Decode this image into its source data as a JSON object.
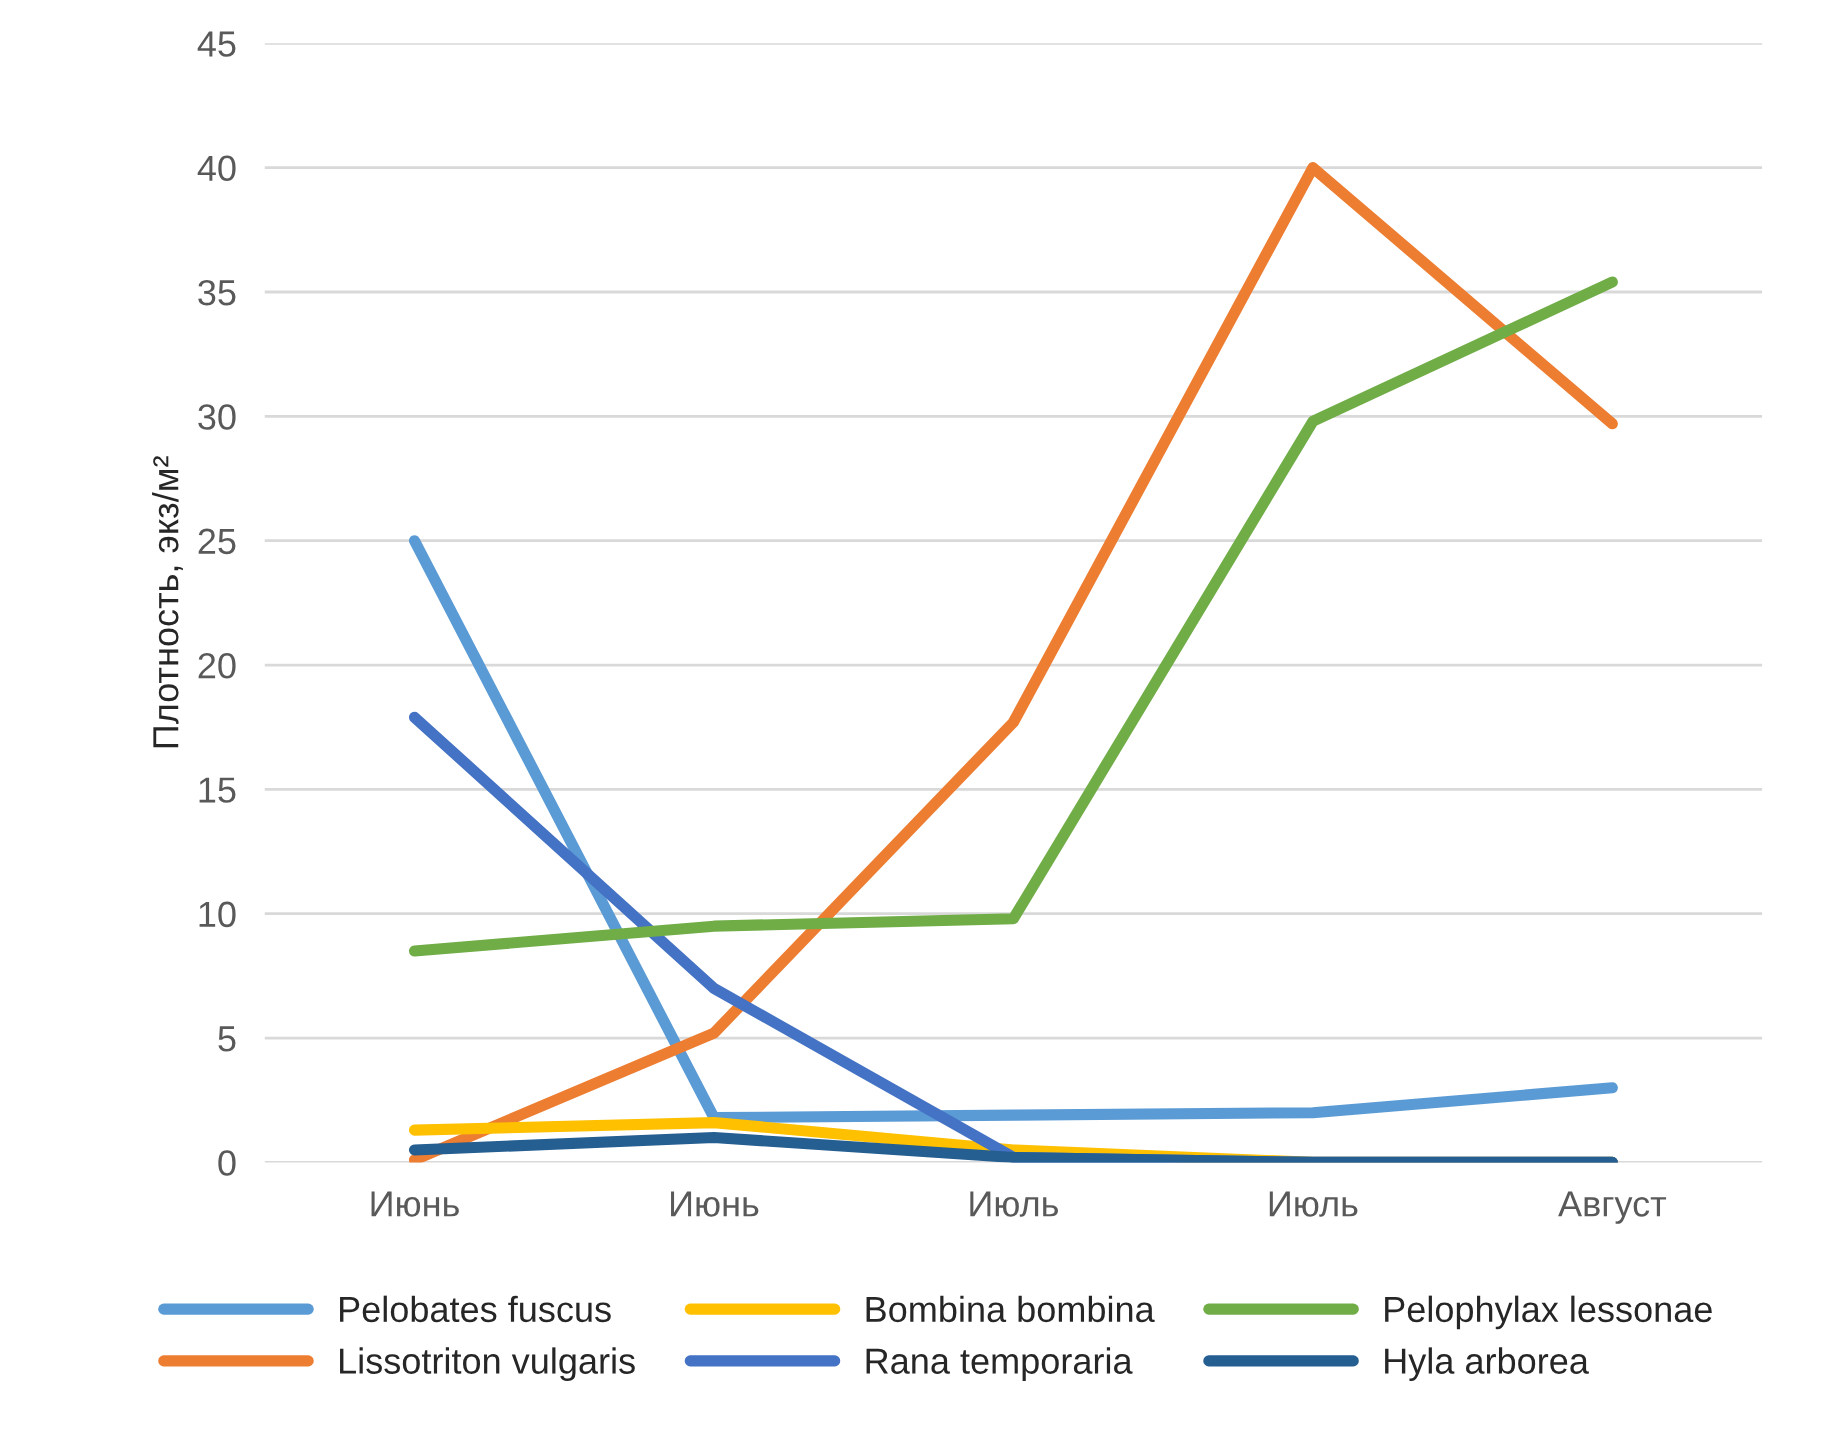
{
  "chart_data": {
    "type": "line",
    "ylabel": "Плотность, экз/м²",
    "categories": [
      "Июнь",
      "Июнь",
      "Июль",
      "Июль",
      "Август"
    ],
    "ylim": [
      0,
      45
    ],
    "yticks": [
      0,
      5,
      10,
      15,
      20,
      25,
      30,
      35,
      40,
      45
    ],
    "grid": "y",
    "legend": "bottom",
    "marker": "none",
    "line_style": "solid",
    "series": [
      {
        "name": "Pelobates fuscus",
        "color": "#5b9bd5",
        "values": [
          25,
          1.8,
          1.9,
          2.0,
          3.0
        ]
      },
      {
        "name": "Lissotriton vulgaris",
        "color": "#ed7d31",
        "values": [
          0.1,
          5.2,
          17.7,
          40,
          29.7
        ]
      },
      {
        "name": "Bombina bombina",
        "color": "#ffc000",
        "values": [
          1.3,
          1.6,
          0.5,
          0,
          0
        ]
      },
      {
        "name": "Rana temporaria",
        "color": "#4472c4",
        "values": [
          17.9,
          7.0,
          0.2,
          0,
          0
        ]
      },
      {
        "name": "Pelophylax lessonae",
        "color": "#70ad47",
        "values": [
          8.5,
          9.5,
          9.8,
          29.8,
          35.4
        ]
      },
      {
        "name": "Hyla arborea",
        "color": "#255e91",
        "values": [
          0.5,
          1.0,
          0.2,
          0,
          0
        ]
      }
    ]
  }
}
